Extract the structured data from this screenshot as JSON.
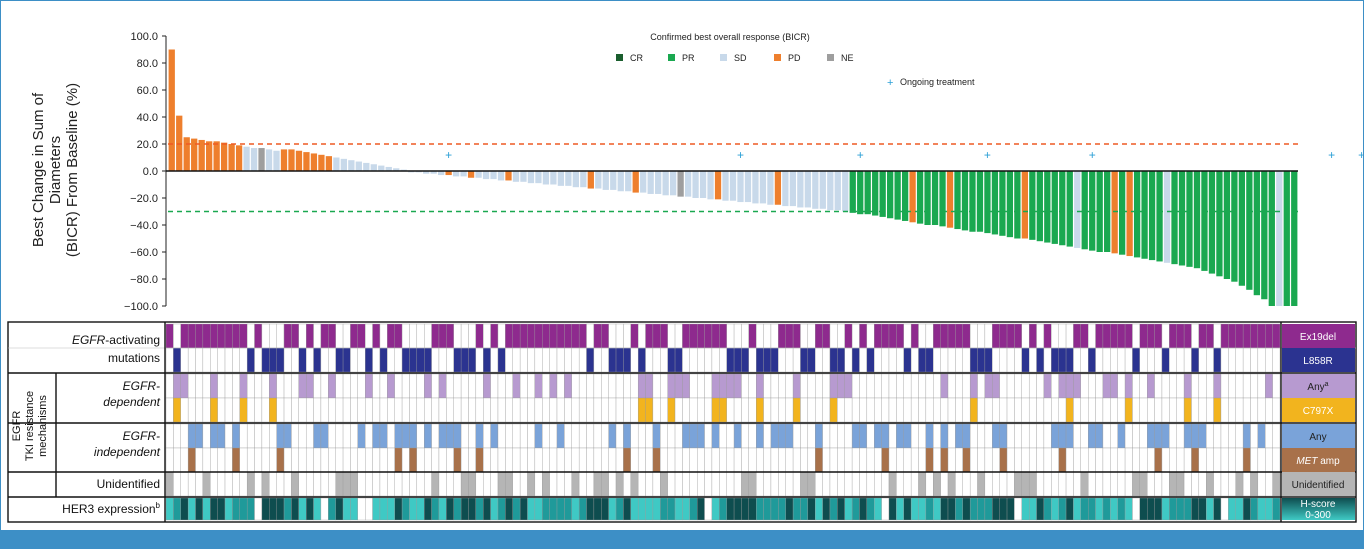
{
  "colors": {
    "CR": "#1a5e2e",
    "PR": "#1aa850",
    "SD": "#c8d9ea",
    "PD": "#ee7f2d",
    "NE": "#9e9e9e",
    "threshold_pd": "#ee5a24",
    "threshold_pr": "#1aa850",
    "ongoing": "#2a9fd6",
    "ex19del": "#8e2a8e",
    "l858r": "#2b3390",
    "dep_any": "#b79ad0",
    "c797x": "#f2b41e",
    "indep_any": "#7aa3d9",
    "met_amp": "#a8714a",
    "unidentified": "#b5b5b5",
    "her3_dark": "#0e4d4f",
    "her3_light": "#3fc9c4",
    "frame_blue": "#3d8fc6"
  },
  "chart_data": {
    "type": "bar",
    "ylabel_lines": [
      "Best Change in Sum of",
      "Diameters",
      "(BICR) From Baseline (%)"
    ],
    "ylim": [
      -100,
      100
    ],
    "yticks": [
      "100.0",
      "80.0",
      "60.0",
      "40.0",
      "20.0",
      "0.0",
      "−20.0",
      "−40.0",
      "−60.0",
      "−80.0",
      "−100.0"
    ],
    "ytick_values": [
      100,
      80,
      60,
      40,
      20,
      0,
      -20,
      -40,
      -60,
      -80,
      -100
    ],
    "thresholds": [
      20,
      -30
    ],
    "legend": {
      "title": "Confirmed best overall response (BICR)",
      "items": [
        {
          "key": "CR",
          "label": "CR"
        },
        {
          "key": "PR",
          "label": "PR"
        },
        {
          "key": "SD",
          "label": "SD"
        },
        {
          "key": "PD",
          "label": "PD"
        },
        {
          "key": "NE",
          "label": "NE"
        }
      ],
      "ongoing_label": "Ongoing treatment"
    },
    "series": [
      {
        "segment": "PD",
        "values": [
          90,
          41,
          25,
          24,
          23,
          22,
          22,
          21
        ]
      },
      {
        "segment": "SD",
        "values": [
          20,
          19,
          18,
          17,
          17,
          16,
          15
        ]
      },
      {
        "segment": "PD",
        "values": [
          16,
          16,
          15
        ]
      },
      {
        "segment": "SD",
        "values": [
          14,
          13,
          12,
          11,
          10,
          9,
          8,
          7,
          6,
          5,
          4,
          3,
          2,
          1
        ]
      },
      {
        "segment": "SD",
        "values": [
          -1,
          -1,
          -2,
          -2,
          -3,
          -3,
          -4
        ]
      },
      {
        "segment": "SD",
        "values": [
          -4,
          -5,
          -5,
          -6,
          -6,
          -7,
          -7,
          -8,
          -8,
          -9,
          -9,
          -10,
          -10,
          -11,
          -11,
          -12,
          -12,
          -13,
          -13,
          -14,
          -14,
          -15,
          -15,
          -16,
          -16,
          -17,
          -17,
          -18
        ]
      },
      {
        "segment": "SD",
        "values": [
          -18,
          -19,
          -19,
          -20,
          -20,
          -21,
          -21,
          -22,
          -22,
          -23,
          -23,
          -24,
          -24,
          -25,
          -25,
          -26,
          -26,
          -27,
          -27,
          -28,
          -28,
          -29,
          -29,
          -30
        ]
      },
      {
        "segment": "PR",
        "values": [
          -31,
          -32,
          -32,
          -33,
          -34,
          -35,
          -36,
          -37,
          -38,
          -39,
          -40,
          -40,
          -41,
          -42,
          -43,
          -44,
          -45,
          -45,
          -46,
          -47,
          -48,
          -49,
          -50,
          -50,
          -51,
          -52,
          -53,
          -54,
          -55,
          -56,
          -57,
          -58,
          -59,
          -60,
          -60,
          -61,
          -62,
          -63,
          -64,
          -65,
          -66,
          -67,
          -68,
          -69,
          -70,
          -71,
          -72,
          -74,
          -76,
          -78,
          -80,
          -82,
          -85,
          -88,
          -92,
          -95,
          -100,
          -100,
          -100,
          -100
        ]
      }
    ],
    "overrides": {
      "PD": [
        8,
        9,
        16,
        17,
        18,
        19,
        20,
        21,
        37,
        40,
        45,
        56,
        62,
        73,
        81,
        99,
        104,
        114,
        126,
        128
      ],
      "NE": [
        12,
        68
      ],
      "SD": [
        121,
        133,
        148,
        160,
        170,
        178
      ],
      "CR": [
        186
      ]
    },
    "ongoing_positions": [
      37,
      76,
      92,
      109,
      123,
      155,
      159,
      166,
      167,
      175,
      176,
      181
    ]
  },
  "heatmap": {
    "row_labels": [
      {
        "key": "ex19del",
        "tag": "Ex19del"
      },
      {
        "key": "l858r",
        "tag": "L858R"
      },
      {
        "key": "dep_any",
        "tag": "Any",
        "sup": "a"
      },
      {
        "key": "c797x",
        "tag": "C797X"
      },
      {
        "key": "indep_any",
        "tag": "Any"
      },
      {
        "key": "met_amp",
        "tag_italic": "MET",
        "tag": " amp"
      },
      {
        "key": "unidentified",
        "tag": "Unidentified"
      },
      {
        "key": "her3",
        "tag": "H-score",
        "tag2": "0-300"
      }
    ],
    "group_labels": {
      "activating_italic": "EGFR",
      "activating_rest": "-activating",
      "activating_line2": "mutations",
      "dependent_italic_1": "EGFR-",
      "dependent_italic_2": "dependent",
      "independent_italic_1": "EGFR-",
      "independent_italic_2": "independent",
      "resistance_1": "EGFR",
      "resistance_2": "TKI resistance",
      "resistance_3": "mechanisms",
      "unidentified": "Unidentified",
      "her3": "HER3 expression",
      "her3_sup": "b"
    }
  }
}
